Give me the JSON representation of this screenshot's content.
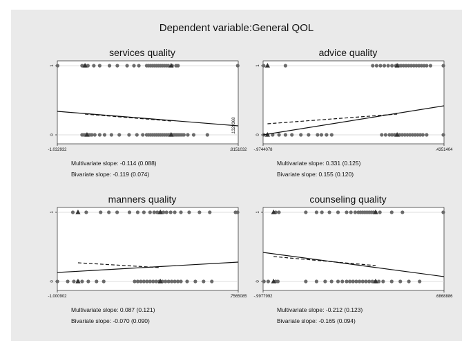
{
  "main_title": "Dependent variable:General QOL",
  "colors": {
    "background": "#eaeaea",
    "plot_bg": "#ffffff",
    "marker": "#6a6a6a",
    "line": "#111111",
    "grid": "#d0d0d0"
  },
  "chart_data": [
    {
      "type": "scatter",
      "title": "services quality",
      "xlim": [
        -1.032932,
        0.8151032
      ],
      "x_tick_labels": [
        "-1.032932",
        ".8151032"
      ],
      "y_ticks": [
        0,
        1
      ],
      "annotation": ".1329368",
      "multivariate_text": "Multivariate slope: -0.114 (0.088)",
      "bivariate_text": "Bivariate slope: -0.119 (0.074)",
      "points_y1": [
        -1.03,
        -0.78,
        -0.75,
        -0.72,
        -0.66,
        -0.6,
        -0.5,
        -0.42,
        -0.32,
        -0.25,
        -0.2,
        -0.12,
        -0.1,
        -0.08,
        -0.06,
        -0.04,
        -0.02,
        0.0,
        0.02,
        0.04,
        0.06,
        0.08,
        0.1,
        0.14,
        0.18,
        0.2,
        0.81
      ],
      "triangles_y1": [
        -0.75,
        0.13
      ],
      "points_y0": [
        -0.78,
        -0.76,
        -0.74,
        -0.72,
        -0.7,
        -0.68,
        -0.65,
        -0.6,
        -0.55,
        -0.48,
        -0.4,
        -0.3,
        -0.22,
        -0.16,
        -0.12,
        -0.1,
        -0.08,
        -0.06,
        -0.04,
        -0.02,
        0.0,
        0.02,
        0.04,
        0.06,
        0.08,
        0.1,
        0.12,
        0.14,
        0.16,
        0.18,
        0.2,
        0.22,
        0.24,
        0.26,
        0.3,
        0.36,
        0.5
      ],
      "triangles_y0": [
        -0.73,
        0.13
      ],
      "multivariate_line": [
        [
          -1.032932,
          0.34
        ],
        [
          0.8151032,
          0.13
        ]
      ],
      "bivariate_line": [
        [
          -0.75,
          0.3
        ],
        [
          0.13,
          0.2
        ]
      ]
    },
    {
      "type": "scatter",
      "title": "advice quality",
      "xlim": [
        -0.9744078,
        0.4351404
      ],
      "x_tick_labels": [
        "-.9744078",
        ".4351404"
      ],
      "y_ticks": [
        0,
        1
      ],
      "multivariate_text": "Multivariate slope: 0.331 (0.125)",
      "bivariate_text": "Bivariate slope: 0.155 (0.120)",
      "points_y1": [
        -0.97,
        -0.8,
        -0.12,
        -0.09,
        -0.06,
        -0.03,
        0.0,
        0.03,
        0.06,
        0.08,
        0.1,
        0.12,
        0.14,
        0.16,
        0.18,
        0.2,
        0.22,
        0.24,
        0.26,
        0.28,
        0.3,
        0.33,
        0.43
      ],
      "triangles_y1": [
        -0.94,
        0.07
      ],
      "points_y0": [
        -0.97,
        -0.94,
        -0.9,
        -0.85,
        -0.8,
        -0.75,
        -0.68,
        -0.62,
        -0.55,
        -0.52,
        -0.48,
        -0.44,
        -0.05,
        -0.02,
        0.01,
        0.03,
        0.05,
        0.07,
        0.09,
        0.11,
        0.13,
        0.15,
        0.17,
        0.19,
        0.21,
        0.23,
        0.25,
        0.27,
        0.3,
        0.43
      ],
      "triangles_y0": [
        -0.94,
        0.07
      ],
      "multivariate_line": [
        [
          -0.9744078,
          0.0
        ],
        [
          0.4351404,
          0.42
        ]
      ],
      "bivariate_line": [
        [
          -0.94,
          0.16
        ],
        [
          0.07,
          0.3
        ]
      ]
    },
    {
      "type": "scatter",
      "title": "manners quality",
      "xlim": [
        -1.000902,
        0.7565085
      ],
      "x_tick_labels": [
        "-1.000902",
        ".7565085"
      ],
      "y_ticks": [
        0,
        1
      ],
      "multivariate_text": "Multivariate slope: 0.087 (0.121)",
      "bivariate_text": "Bivariate slope: -0.070 (0.090)",
      "points_y1": [
        -0.85,
        -0.72,
        -0.58,
        -0.5,
        -0.42,
        -0.3,
        -0.22,
        -0.16,
        -0.1,
        -0.06,
        -0.03,
        0.0,
        0.03,
        0.06,
        0.1,
        0.14,
        0.2,
        0.28,
        0.38,
        0.48,
        0.73,
        0.75
      ],
      "triangles_y1": [
        -0.8,
        0.0
      ],
      "points_y0": [
        -1.0,
        -0.9,
        -0.84,
        -0.8,
        -0.76,
        -0.7,
        -0.62,
        -0.55,
        -0.25,
        -0.22,
        -0.19,
        -0.16,
        -0.13,
        -0.1,
        -0.07,
        -0.04,
        -0.01,
        0.02,
        0.05,
        0.08,
        0.11,
        0.14,
        0.17,
        0.2,
        0.26,
        0.34,
        0.42,
        0.5
      ],
      "triangles_y0": [
        -0.8,
        0.0
      ],
      "multivariate_line": [
        [
          -1.000902,
          0.13
        ],
        [
          0.7565085,
          0.28
        ]
      ],
      "bivariate_line": [
        [
          -0.8,
          0.27
        ],
        [
          0.0,
          0.2
        ]
      ]
    },
    {
      "type": "scatter",
      "title": "counseling quality",
      "xlim": [
        -0.9977992,
        0.6868886
      ],
      "x_tick_labels": [
        "-.9977992",
        ".6868886"
      ],
      "y_ticks": [
        0,
        1
      ],
      "multivariate_text": "Multivariate slope: -0.212 (0.123)",
      "bivariate_text": "Bivariate slope: -0.165 (0.094)",
      "points_y1": [
        -0.88,
        -0.85,
        -0.6,
        -0.5,
        -0.45,
        -0.38,
        -0.3,
        -0.22,
        -0.18,
        -0.14,
        -0.11,
        -0.09,
        -0.07,
        -0.05,
        -0.03,
        -0.01,
        0.01,
        0.03,
        0.05,
        0.09,
        0.2,
        0.3,
        0.68
      ],
      "triangles_y1": [
        -0.9,
        0.05
      ],
      "points_y0": [
        -0.99,
        -0.95,
        -0.88,
        -0.86,
        -0.6,
        -0.5,
        -0.42,
        -0.36,
        -0.3,
        -0.26,
        -0.22,
        -0.19,
        -0.16,
        -0.13,
        -0.1,
        -0.07,
        -0.04,
        -0.01,
        0.02,
        0.05,
        0.08,
        0.12,
        0.2,
        0.28,
        0.36,
        0.46
      ],
      "triangles_y0": [
        -0.9,
        0.05
      ],
      "multivariate_line": [
        [
          -0.9977992,
          0.42
        ],
        [
          0.6868886,
          0.07
        ]
      ],
      "bivariate_line": [
        [
          -0.9,
          0.36
        ],
        [
          0.05,
          0.23
        ]
      ]
    }
  ]
}
